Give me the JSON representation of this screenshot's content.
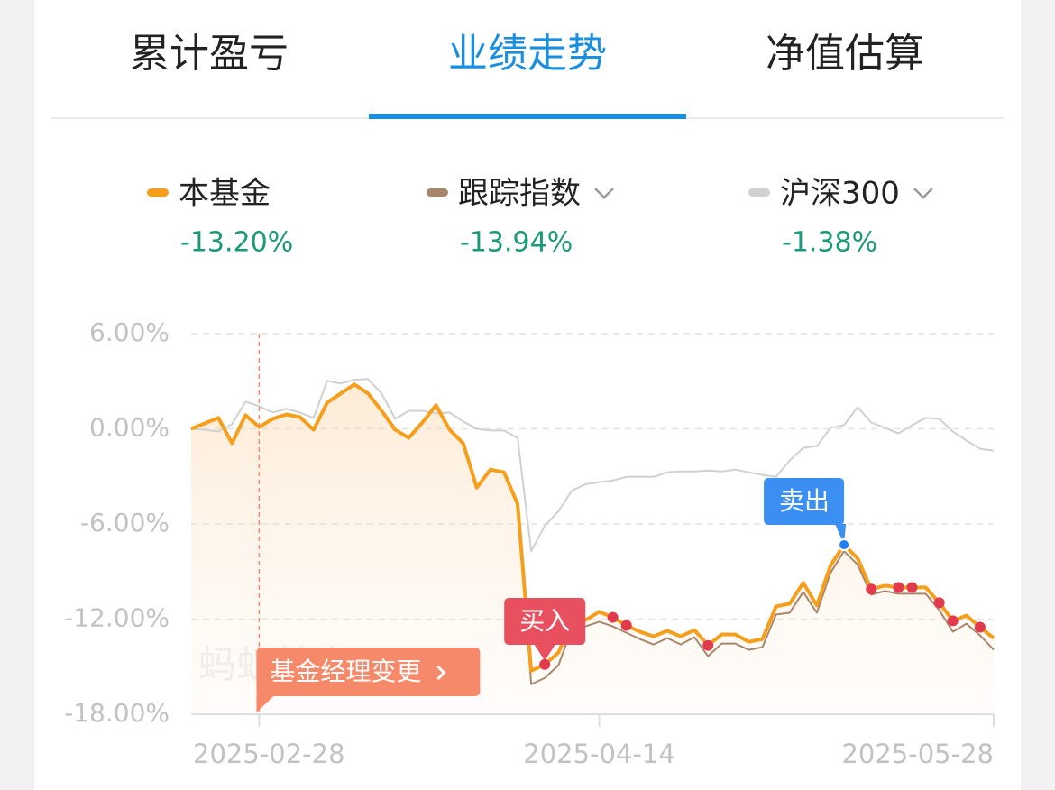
{
  "tabs": [
    "累计盈亏",
    "业绩走势",
    "净值估算"
  ],
  "active_tab": 1,
  "chart_data": {
    "type": "line",
    "watermark": "蚂蚁基金",
    "categories": [
      null,
      null,
      null,
      null,
      null,
      "2025-02-28",
      null,
      null,
      null,
      null,
      null,
      null,
      null,
      null,
      null,
      null,
      null,
      null,
      null,
      null,
      null,
      null,
      null,
      null,
      null,
      null,
      null,
      null,
      null,
      null,
      "2025-04-14",
      null,
      null,
      null,
      null,
      null,
      null,
      null,
      null,
      null,
      null,
      null,
      null,
      null,
      null,
      null,
      null,
      null,
      null,
      null,
      null,
      null,
      null,
      null,
      null,
      null,
      null,
      null,
      null,
      "2025-05-28"
    ],
    "ylim": [
      -18,
      6
    ],
    "yticks": [
      {
        "value": 6,
        "label": "6.00%"
      },
      {
        "value": 0,
        "label": "0.00%"
      },
      {
        "value": -6,
        "label": "-6.00%"
      },
      {
        "value": -12,
        "label": "-12.00%"
      },
      {
        "value": -18,
        "label": "-18.00%"
      }
    ],
    "grid": true,
    "series": [
      {
        "name": "本基金",
        "return_label": "-13.20%",
        "color": "#f59f1c",
        "values": [
          0,
          0.34,
          0.69,
          -0.91,
          0.86,
          0.11,
          0.63,
          0.91,
          0.74,
          -0.06,
          1.66,
          2.23,
          2.8,
          2.23,
          1.14,
          -0.06,
          -0.57,
          0.4,
          1.49,
          -0.06,
          -0.91,
          -3.71,
          -2.57,
          -2.74,
          -4.74,
          -15.26,
          -14.86,
          -14.11,
          -12.17,
          -12.06,
          -11.54,
          -11.89,
          -12.4,
          -12.8,
          -13.09,
          -12.74,
          -13.09,
          -12.69,
          -13.66,
          -12.97,
          -12.97,
          -13.43,
          -13.26,
          -11.2,
          -11.03,
          -9.71,
          -11.14,
          -8.63,
          -7.31,
          -8.17,
          -10.11,
          -9.89,
          -10,
          -10,
          -10,
          -10.97,
          -12.11,
          -11.77,
          -12.51,
          -13.2
        ]
      },
      {
        "name": "跟踪指数",
        "return_label": "-13.94%",
        "color": "#a8866c",
        "dropdown": true,
        "values": [
          0,
          0.34,
          0.69,
          -0.91,
          0.86,
          0.11,
          0.63,
          0.91,
          0.74,
          -0.06,
          1.66,
          2.23,
          2.8,
          2.23,
          1.14,
          -0.06,
          -0.57,
          0.4,
          1.49,
          -0.06,
          -0.91,
          -3.71,
          -2.57,
          -2.74,
          -4.74,
          -16.11,
          -15.71,
          -14.91,
          -12.57,
          -12.46,
          -12.17,
          -12.46,
          -12.86,
          -13.26,
          -13.6,
          -13.2,
          -13.6,
          -13.14,
          -14.34,
          -13.54,
          -13.54,
          -13.94,
          -13.77,
          -11.71,
          -11.6,
          -10.29,
          -11.6,
          -9.09,
          -7.71,
          -8.57,
          -10.46,
          -10.23,
          -10.4,
          -10.4,
          -10.4,
          -11.43,
          -12.8,
          -12.29,
          -13.03,
          -13.94
        ]
      },
      {
        "name": "沪深300",
        "return_label": "-1.38%",
        "color": "#d0d0d0",
        "dropdown": true,
        "values": [
          0,
          -0.06,
          -0.17,
          0.29,
          1.71,
          1.43,
          1.03,
          1.26,
          1.03,
          0.69,
          3.03,
          2.86,
          3.09,
          3.14,
          2.23,
          0.63,
          1.14,
          1.14,
          0.97,
          1.03,
          0.46,
          0,
          -0.11,
          -0.11,
          -0.57,
          -7.71,
          -6.11,
          -5.2,
          -3.89,
          -3.49,
          -3.37,
          -3.26,
          -3.03,
          -3.03,
          -3.03,
          -2.74,
          -2.69,
          -2.69,
          -2.63,
          -2.69,
          -2.57,
          -2.74,
          -2.91,
          -3.03,
          -2,
          -1.2,
          -1.09,
          0.06,
          0.23,
          1.37,
          0.4,
          0.06,
          -0.29,
          0.23,
          0.69,
          0.63,
          -0.17,
          -0.74,
          -1.26,
          -1.38
        ]
      }
    ],
    "dot_indices": [
      31,
      32,
      38,
      50,
      52,
      53,
      55,
      56,
      58
    ],
    "annotations": [
      {
        "label": "基金经理变更",
        "index": 5,
        "color": "#f7896b"
      },
      {
        "label": "买入",
        "index": 26,
        "color": "#e9505f"
      },
      {
        "label": "卖出",
        "index": 48,
        "color": "#3b8ef2"
      }
    ]
  }
}
